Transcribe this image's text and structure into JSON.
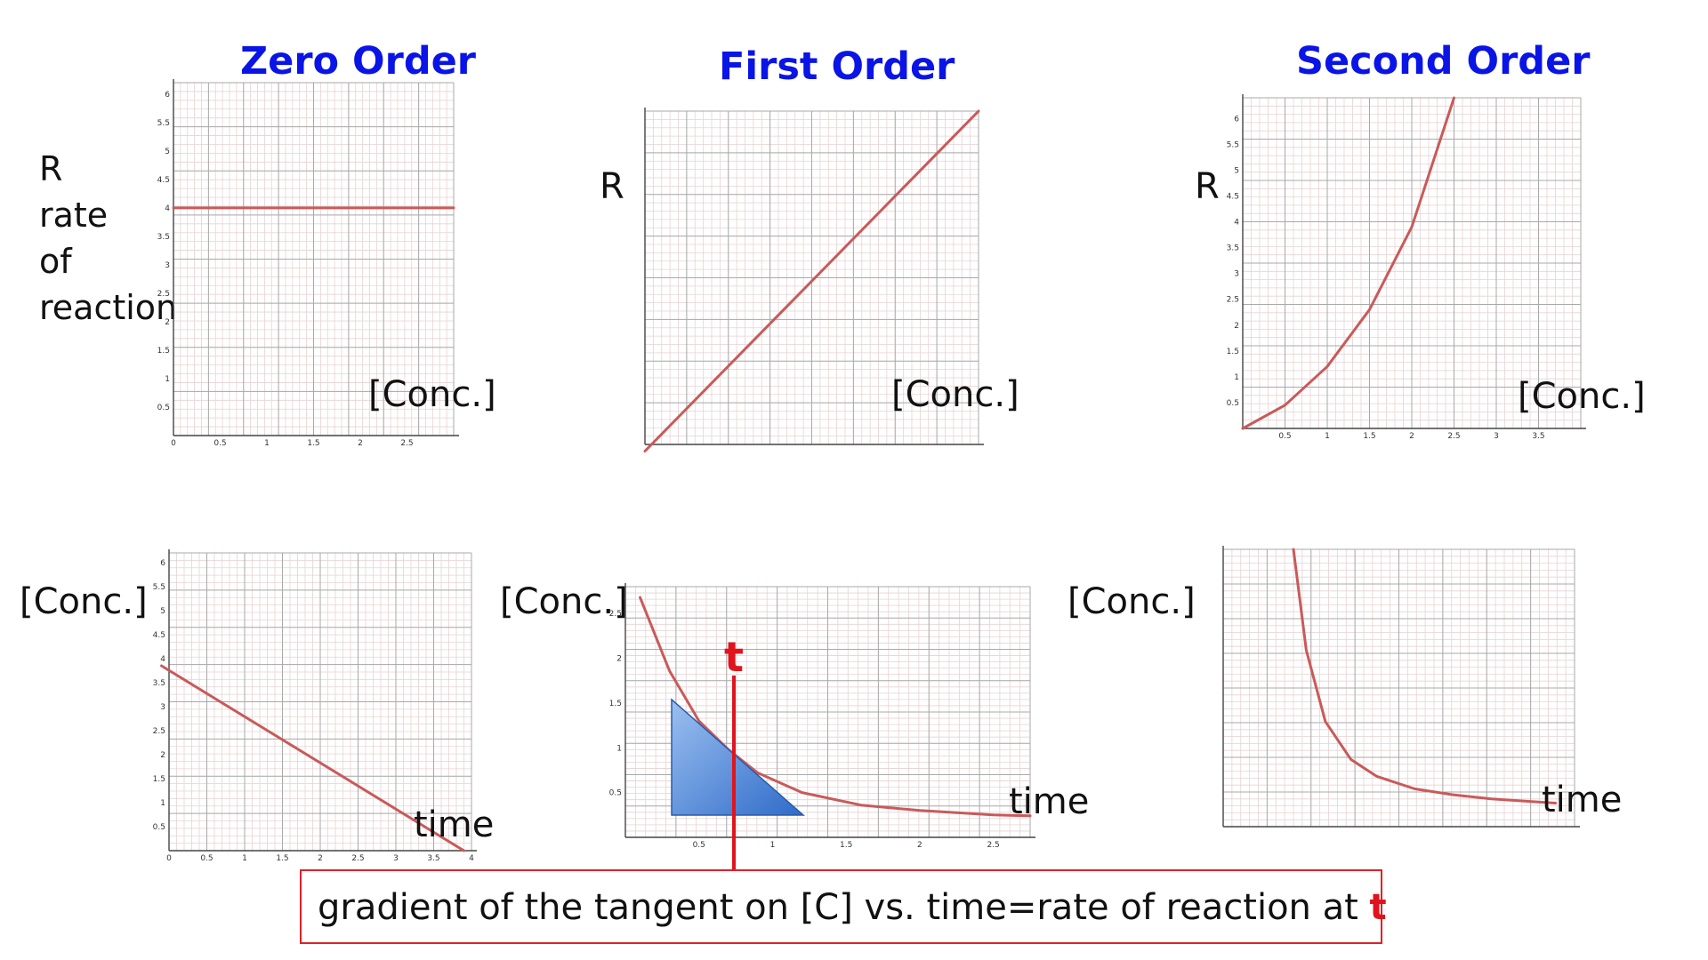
{
  "titles": {
    "zero": "Zero Order",
    "first": "First Order",
    "second": "Second Order"
  },
  "labels": {
    "R": "R",
    "rate_of_reaction": [
      "rate",
      "of",
      "reaction"
    ],
    "conc": "[Conc.]",
    "time": "time",
    "t": "t"
  },
  "note": {
    "text": "gradient of the tangent on [C] vs. time=rate of reaction at ",
    "highlight": "t"
  },
  "colors": {
    "title": "#0a14e6",
    "curve": "#c95a5a",
    "emphasis": "#e0141c",
    "triangle": "#3b78d8"
  },
  "chart_data": [
    {
      "type": "line",
      "title": "Zero Order",
      "ylabel": "R rate of reaction",
      "xlabel": "[Conc.]",
      "x_ticks": [
        "0",
        "0.5",
        "1",
        "1.5",
        "2",
        "2.5"
      ],
      "y_ticks": [
        "0.5",
        "1",
        "1.5",
        "2",
        "2.5",
        "3",
        "3.5",
        "4",
        "4.5",
        "5",
        "5.5",
        "6"
      ],
      "xlim": [
        0,
        3.0
      ],
      "ylim": [
        0,
        6.2
      ],
      "series": [
        {
          "x": [
            0,
            3.0
          ],
          "y": [
            4,
            4
          ]
        }
      ]
    },
    {
      "type": "line",
      "title": "First Order",
      "ylabel": "R",
      "xlabel": "[Conc.]",
      "xlim": [
        0,
        5
      ],
      "ylim": [
        0,
        5
      ],
      "series": [
        {
          "x": [
            0,
            5
          ],
          "y": [
            -0.1,
            5.0
          ]
        }
      ]
    },
    {
      "type": "line",
      "title": "Second Order",
      "ylabel": "R",
      "xlabel": "[Conc.]",
      "x_ticks": [
        "0.5",
        "1",
        "1.5",
        "2",
        "2.5",
        "3",
        "3.5"
      ],
      "y_ticks": [
        "0.5",
        "1",
        "1.5",
        "2",
        "2.5",
        "3",
        "3.5",
        "4",
        "4.5",
        "5",
        "5.5",
        "6"
      ],
      "xlim": [
        0,
        4
      ],
      "ylim": [
        0,
        6.4
      ],
      "series": [
        {
          "x": [
            0,
            0.5,
            1.0,
            1.5,
            2.0,
            2.5
          ],
          "y": [
            0,
            0.45,
            1.2,
            2.3,
            3.9,
            6.4
          ]
        }
      ]
    },
    {
      "type": "line",
      "title": "",
      "ylabel": "[Conc.]",
      "xlabel": "time",
      "x_ticks": [
        "0",
        "0.5",
        "1",
        "1.5",
        "2",
        "2.5",
        "3",
        "3.5",
        "4"
      ],
      "y_ticks": [
        "0.5",
        "1",
        "1.5",
        "2",
        "2.5",
        "3",
        "3.5",
        "4",
        "4.5",
        "5",
        "5.5",
        "6"
      ],
      "xlim": [
        0,
        4
      ],
      "ylim": [
        0,
        6.2
      ],
      "series": [
        {
          "x": [
            -0.1,
            3.9
          ],
          "y": [
            3.85,
            0
          ]
        }
      ]
    },
    {
      "type": "line",
      "title": "",
      "ylabel": "[Conc.]",
      "xlabel": "time",
      "x_ticks": [
        "0.5",
        "1",
        "1.5",
        "2",
        "2.5"
      ],
      "y_ticks": [
        "0.5",
        "1",
        "1.5",
        "2",
        "2.5"
      ],
      "xlim": [
        0,
        2.75
      ],
      "ylim": [
        0,
        2.8
      ],
      "series": [
        {
          "x": [
            0.1,
            0.3,
            0.5,
            0.7,
            0.9,
            1.2,
            1.6,
            2.0,
            2.5,
            2.75
          ],
          "y": [
            2.68,
            1.86,
            1.3,
            0.98,
            0.72,
            0.5,
            0.36,
            0.3,
            0.25,
            0.24
          ]
        }
      ]
    },
    {
      "type": "line",
      "title": "",
      "ylabel": "[Conc.]",
      "xlabel": "time",
      "xlim": [
        0,
        2.75
      ],
      "ylim": [
        0,
        3.3
      ],
      "series": [
        {
          "x": [
            0.55,
            0.65,
            0.8,
            1.0,
            1.2,
            1.5,
            1.8,
            2.1,
            2.4,
            2.6
          ],
          "y": [
            3.3,
            2.1,
            1.25,
            0.8,
            0.6,
            0.45,
            0.38,
            0.33,
            0.3,
            0.28
          ]
        }
      ]
    }
  ]
}
